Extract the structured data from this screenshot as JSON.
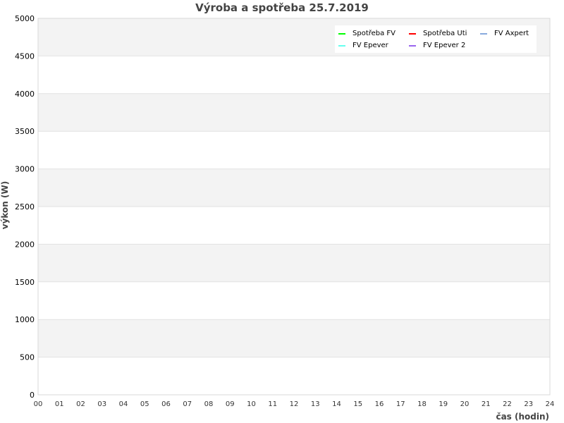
{
  "chart_data": {
    "type": "line",
    "title": "Výroba a spotřeba 25.7.2019",
    "xlabel": "čas (hodin)",
    "ylabel": "výkon (W)",
    "xlim": [
      0,
      24
    ],
    "ylim": [
      0,
      5000
    ],
    "x_ticks": [
      "00",
      "01",
      "02",
      "03",
      "04",
      "05",
      "06",
      "07",
      "08",
      "09",
      "10",
      "11",
      "12",
      "13",
      "14",
      "15",
      "16",
      "17",
      "18",
      "19",
      "20",
      "21",
      "22",
      "23",
      "24"
    ],
    "y_ticks": [
      0,
      500,
      1000,
      1500,
      2000,
      2500,
      3000,
      3500,
      4000,
      4500,
      5000
    ],
    "grid": true,
    "legend_position": "top-right",
    "series": [
      {
        "name": "Spotřeba FV",
        "color": "#00ff00",
        "values": []
      },
      {
        "name": "Spotřeba Uti",
        "color": "#ff0000",
        "values": []
      },
      {
        "name": "FV Axpert",
        "color": "#88aadd",
        "values": []
      },
      {
        "name": "FV Epever",
        "color": "#66ffee",
        "values": []
      },
      {
        "name": "FV Epever 2",
        "color": "#9966ee",
        "values": []
      }
    ]
  }
}
